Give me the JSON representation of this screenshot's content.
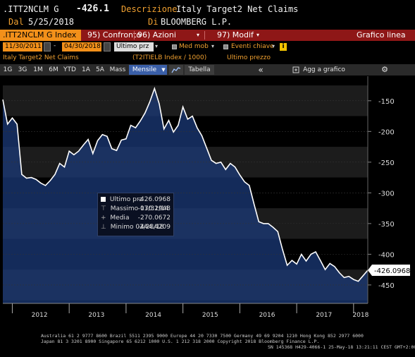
{
  "header": {
    "ticker": ".ITT2NCLM G",
    "value": "-426.1",
    "desc_label": "Descrizione",
    "desc_value": "Italy Target2 Net Claims",
    "date_prefix": "Dal",
    "date_value": "5/25/2018",
    "source_prefix": "Di",
    "source_value": "BLOOMBERG L.P."
  },
  "menubar": {
    "index_tab": ".ITT2NCLM G Index",
    "confronto": "95) Confronto",
    "azioni": "96) Azioni",
    "modif": "97) Modif",
    "grafico": "Grafico linea"
  },
  "daterow": {
    "start_date": "11/30/2011",
    "end_date": "04/30/2018",
    "field": "Ultimo prz",
    "med_mob": "Med mob",
    "eventi": "Eventi chiave",
    "info_icon": "i"
  },
  "inforow": {
    "name": "Italy Target2 Net Claims",
    "formula": "(T2ITIELB Index / 1000)",
    "last": "Ultimo prezzo"
  },
  "toolbar": {
    "periods": [
      "1G",
      "3G",
      "1M",
      "6M",
      "YTD",
      "1A",
      "5A",
      "Mass"
    ],
    "frequency": "Mensile",
    "tabella": "Tabella",
    "back": "«",
    "add_chart": "Agg a grafico",
    "settings": "⚙"
  },
  "legend": {
    "rows": [
      {
        "label": "Ultimo prz",
        "value": "-426.0968"
      },
      {
        "label": "Massimo 07/31/14",
        "value": "-130.2948"
      },
      {
        "label": "Media",
        "value": "-270.0672"
      },
      {
        "label": "Minimo 02/28/18",
        "value": "-444.4209"
      }
    ]
  },
  "chart_data": {
    "type": "area",
    "title": "",
    "xlabel": "",
    "ylabel": "",
    "ylim": [
      -480,
      -110
    ],
    "yticks": [
      -150,
      -200,
      -250,
      -300,
      -350,
      -400,
      -450
    ],
    "x_tick_labels": [
      "2012",
      "2013",
      "2014",
      "2015",
      "2016",
      "2017",
      "2018"
    ],
    "last_value_label": "-426.0968",
    "colors": {
      "line": "#ffffff",
      "fill": "#1b3a78",
      "fill_top": "#18274a"
    },
    "series": [
      {
        "x": [
          "2011-11",
          "2011-12",
          "2012-01",
          "2012-02",
          "2012-03",
          "2012-04",
          "2012-05",
          "2012-06",
          "2012-07",
          "2012-08",
          "2012-09",
          "2012-10",
          "2012-11",
          "2012-12",
          "2013-01",
          "2013-02",
          "2013-03",
          "2013-04",
          "2013-05",
          "2013-06",
          "2013-07",
          "2013-08",
          "2013-09",
          "2013-10",
          "2013-11",
          "2013-12",
          "2014-01",
          "2014-02",
          "2014-03",
          "2014-04",
          "2014-05",
          "2014-06",
          "2014-07",
          "2014-08",
          "2014-09",
          "2014-10",
          "2014-11",
          "2014-12",
          "2015-01",
          "2015-02",
          "2015-03",
          "2015-04",
          "2015-05",
          "2015-06",
          "2015-07",
          "2015-08",
          "2015-09",
          "2015-10",
          "2015-11",
          "2015-12",
          "2016-01",
          "2016-02",
          "2016-03",
          "2016-04",
          "2016-05",
          "2016-06",
          "2016-07",
          "2016-08",
          "2016-09",
          "2016-10",
          "2016-11",
          "2016-12",
          "2017-01",
          "2017-02",
          "2017-03",
          "2017-04",
          "2017-05",
          "2017-06",
          "2017-07",
          "2017-08",
          "2017-09",
          "2017-10",
          "2017-11",
          "2017-12",
          "2018-01",
          "2018-02",
          "2018-03",
          "2018-04"
        ],
        "values": [
          -148,
          -188,
          -178,
          -188,
          -270,
          -276,
          -275,
          -278,
          -284,
          -288,
          -280,
          -270,
          -252,
          -258,
          -232,
          -238,
          -232,
          -222,
          -213,
          -236,
          -215,
          -205,
          -208,
          -228,
          -231,
          -214,
          -212,
          -190,
          -194,
          -183,
          -170,
          -152,
          -130,
          -155,
          -196,
          -182,
          -201,
          -190,
          -160,
          -180,
          -175,
          -194,
          -207,
          -227,
          -247,
          -252,
          -250,
          -262,
          -252,
          -258,
          -271,
          -282,
          -288,
          -318,
          -347,
          -350,
          -350,
          -356,
          -363,
          -392,
          -418,
          -410,
          -416,
          -400,
          -411,
          -400,
          -396,
          -410,
          -425,
          -415,
          -420,
          -430,
          -438,
          -436,
          -441,
          -444,
          -435,
          -426
        ]
      }
    ]
  },
  "footer": {
    "line1": "Australia 61 2 9777 8600 Brazil 5511 2395 9000 Europe 44 20 7330 7500 Germany 49 69 9204 1210 Hong Kong 852 2977 6000",
    "line2": "Japan 81 3 3201 8900          Singapore 65 6212 1000          U.S. 1 212 318 2000          Copyright 2018 Bloomberg Finance L.P.",
    "line3": "SN 145368 H429-4066-1 25-May-18 13:21:11 CEST GMT+2:00"
  }
}
